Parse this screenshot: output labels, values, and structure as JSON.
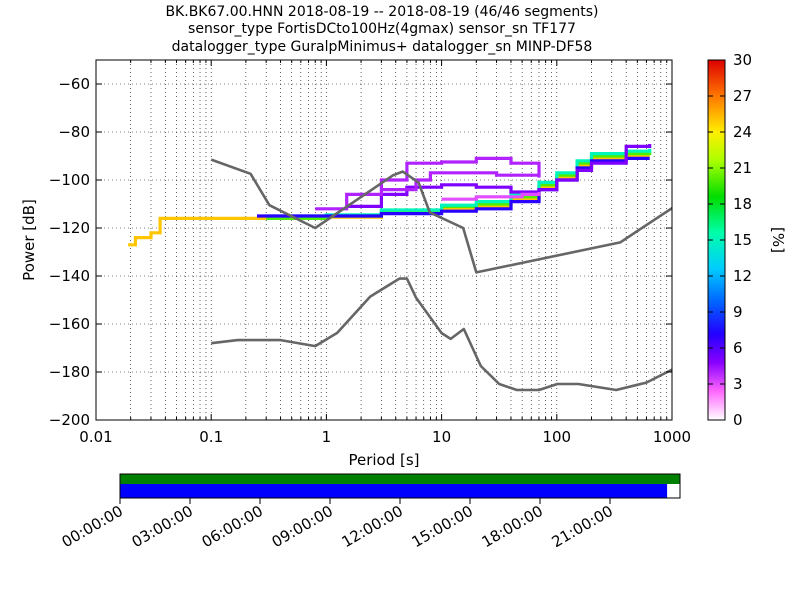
{
  "title_lines": [
    "BK.BK67.00.HNN   2018-08-19 -- 2018-08-19  (46/46 segments)",
    "sensor_type FortisDCto100Hz(4gmax) sensor_sn TF177",
    "datalogger_type GuralpMinimus+ datalogger_sn MINP-DF58"
  ],
  "chart_data": {
    "type": "heatmap",
    "xlabel": "Period [s]",
    "ylabel": "Power [dB]",
    "xscale": "log",
    "xlim": [
      0.01,
      1000
    ],
    "ylim": [
      -200,
      -50
    ],
    "x_ticks": [
      {
        "value": 0.01,
        "label": "0.01"
      },
      {
        "value": 0.1,
        "label": "0.1"
      },
      {
        "value": 1,
        "label": "1"
      },
      {
        "value": 10,
        "label": "10"
      },
      {
        "value": 100,
        "label": "100"
      },
      {
        "value": 1000,
        "label": "1000"
      }
    ],
    "y_ticks": [
      {
        "value": -200,
        "label": "−200"
      },
      {
        "value": -180,
        "label": "−180"
      },
      {
        "value": -160,
        "label": "−160"
      },
      {
        "value": -140,
        "label": "−140"
      },
      {
        "value": -120,
        "label": "−120"
      },
      {
        "value": -100,
        "label": "−100"
      },
      {
        "value": -80,
        "label": "−80"
      },
      {
        "value": -60,
        "label": "−60"
      }
    ],
    "grid": true,
    "colorbar": {
      "label": "[%]",
      "min": 0,
      "max": 30,
      "ticks": [
        "0",
        "3",
        "6",
        "9",
        "12",
        "15",
        "18",
        "21",
        "24",
        "27",
        "30"
      ]
    },
    "noise_models": [
      {
        "name": "high",
        "points": [
          [
            0.1,
            -91.5
          ],
          [
            0.22,
            -97.4
          ],
          [
            0.32,
            -110.5
          ],
          [
            0.8,
            -120
          ],
          [
            3.8,
            -98
          ],
          [
            4.6,
            -96.5
          ],
          [
            6.3,
            -101
          ],
          [
            7.9,
            -113.5
          ],
          [
            15.4,
            -120
          ],
          [
            20,
            -138.5
          ],
          [
            354.8,
            -126
          ],
          [
            10000,
            -80
          ]
        ]
      },
      {
        "name": "low",
        "points": [
          [
            0.1,
            -168
          ],
          [
            0.17,
            -166.7
          ],
          [
            0.4,
            -166.7
          ],
          [
            0.8,
            -169.2
          ],
          [
            1.24,
            -163.7
          ],
          [
            2.4,
            -148.6
          ],
          [
            4.3,
            -141.1
          ],
          [
            5,
            -141.1
          ],
          [
            6,
            -149
          ],
          [
            10,
            -163.8
          ],
          [
            12,
            -166.2
          ],
          [
            15.6,
            -162.1
          ],
          [
            21.9,
            -177.5
          ],
          [
            31.6,
            -185
          ],
          [
            45,
            -187.5
          ],
          [
            70,
            -187.5
          ],
          [
            101,
            -185
          ],
          [
            154,
            -185
          ],
          [
            328,
            -187.5
          ],
          [
            600,
            -184.4
          ],
          [
            1000,
            -179
          ]
        ]
      }
    ],
    "psd_bands": [
      {
        "level": 25,
        "points": [
          [
            0.019,
            -127
          ],
          [
            0.022,
            -124
          ],
          [
            0.03,
            -122
          ],
          [
            0.036,
            -116
          ],
          [
            0.1,
            -116
          ],
          [
            1,
            -115.5
          ],
          [
            3,
            -113.5
          ],
          [
            10,
            -112
          ],
          [
            20,
            -111
          ],
          [
            40,
            -108
          ],
          [
            70,
            -103
          ],
          [
            100,
            -99
          ],
          [
            150,
            -94
          ],
          [
            200,
            -91
          ],
          [
            400,
            -90
          ],
          [
            640,
            -90
          ]
        ]
      },
      {
        "level": 20,
        "points": [
          [
            0.3,
            -116
          ],
          [
            1,
            -115
          ],
          [
            3,
            -113
          ],
          [
            10,
            -111
          ],
          [
            20,
            -110
          ],
          [
            40,
            -107
          ],
          [
            70,
            -102
          ],
          [
            100,
            -98
          ],
          [
            150,
            -93
          ],
          [
            200,
            -90
          ],
          [
            400,
            -89
          ],
          [
            640,
            -88
          ]
        ]
      },
      {
        "level": 15,
        "points": [
          [
            0.3,
            -115
          ],
          [
            1,
            -114.5
          ],
          [
            3,
            -112.5
          ],
          [
            10,
            -110.5
          ],
          [
            20,
            -109
          ],
          [
            40,
            -106
          ],
          [
            70,
            -101
          ],
          [
            100,
            -97
          ],
          [
            150,
            -92
          ],
          [
            200,
            -89
          ],
          [
            400,
            -88
          ],
          [
            640,
            -87
          ]
        ]
      },
      {
        "level": 7,
        "points": [
          [
            0.25,
            -115
          ],
          [
            1,
            -115
          ],
          [
            3,
            -114
          ],
          [
            10,
            -113
          ],
          [
            20,
            -112
          ],
          [
            40,
            -109
          ],
          [
            70,
            -104
          ],
          [
            100,
            -100
          ],
          [
            150,
            -95
          ],
          [
            200,
            -92
          ],
          [
            400,
            -91
          ],
          [
            640,
            -91
          ]
        ]
      },
      {
        "level": 5,
        "points": [
          [
            1.5,
            -111
          ],
          [
            3,
            -106
          ],
          [
            5,
            -103
          ],
          [
            10,
            -102
          ],
          [
            20,
            -103
          ],
          [
            40,
            -105
          ],
          [
            70,
            -104
          ],
          [
            100,
            -100
          ],
          [
            150,
            -96
          ],
          [
            200,
            -93
          ],
          [
            400,
            -86
          ],
          [
            640,
            -85
          ]
        ]
      },
      {
        "level": 4,
        "points": [
          [
            0.8,
            -112
          ],
          [
            1.5,
            -106
          ],
          [
            3,
            -100
          ],
          [
            5,
            -93
          ],
          [
            10,
            -92.5
          ],
          [
            20,
            -91
          ],
          [
            30,
            -91
          ],
          [
            40,
            -93
          ],
          [
            70,
            -98
          ]
        ]
      },
      {
        "level": 4,
        "points": [
          [
            3,
            -104
          ],
          [
            6,
            -100
          ],
          [
            8,
            -97
          ],
          [
            15,
            -97
          ],
          [
            30,
            -98
          ],
          [
            50,
            -98
          ],
          [
            70,
            -99
          ]
        ]
      },
      {
        "level": 3,
        "points": [
          [
            10,
            -108
          ],
          [
            20,
            -107
          ],
          [
            50,
            -106
          ],
          [
            70,
            -105
          ]
        ]
      }
    ]
  },
  "time_bar": {
    "ticks": [
      "00:00:00",
      "03:00:00",
      "06:00:00",
      "09:00:00",
      "12:00:00",
      "15:00:00",
      "18:00:00",
      "21:00:00"
    ],
    "top_color": "#008000",
    "bottom_color": "#0000ff",
    "coverage_fraction": 0.977
  }
}
